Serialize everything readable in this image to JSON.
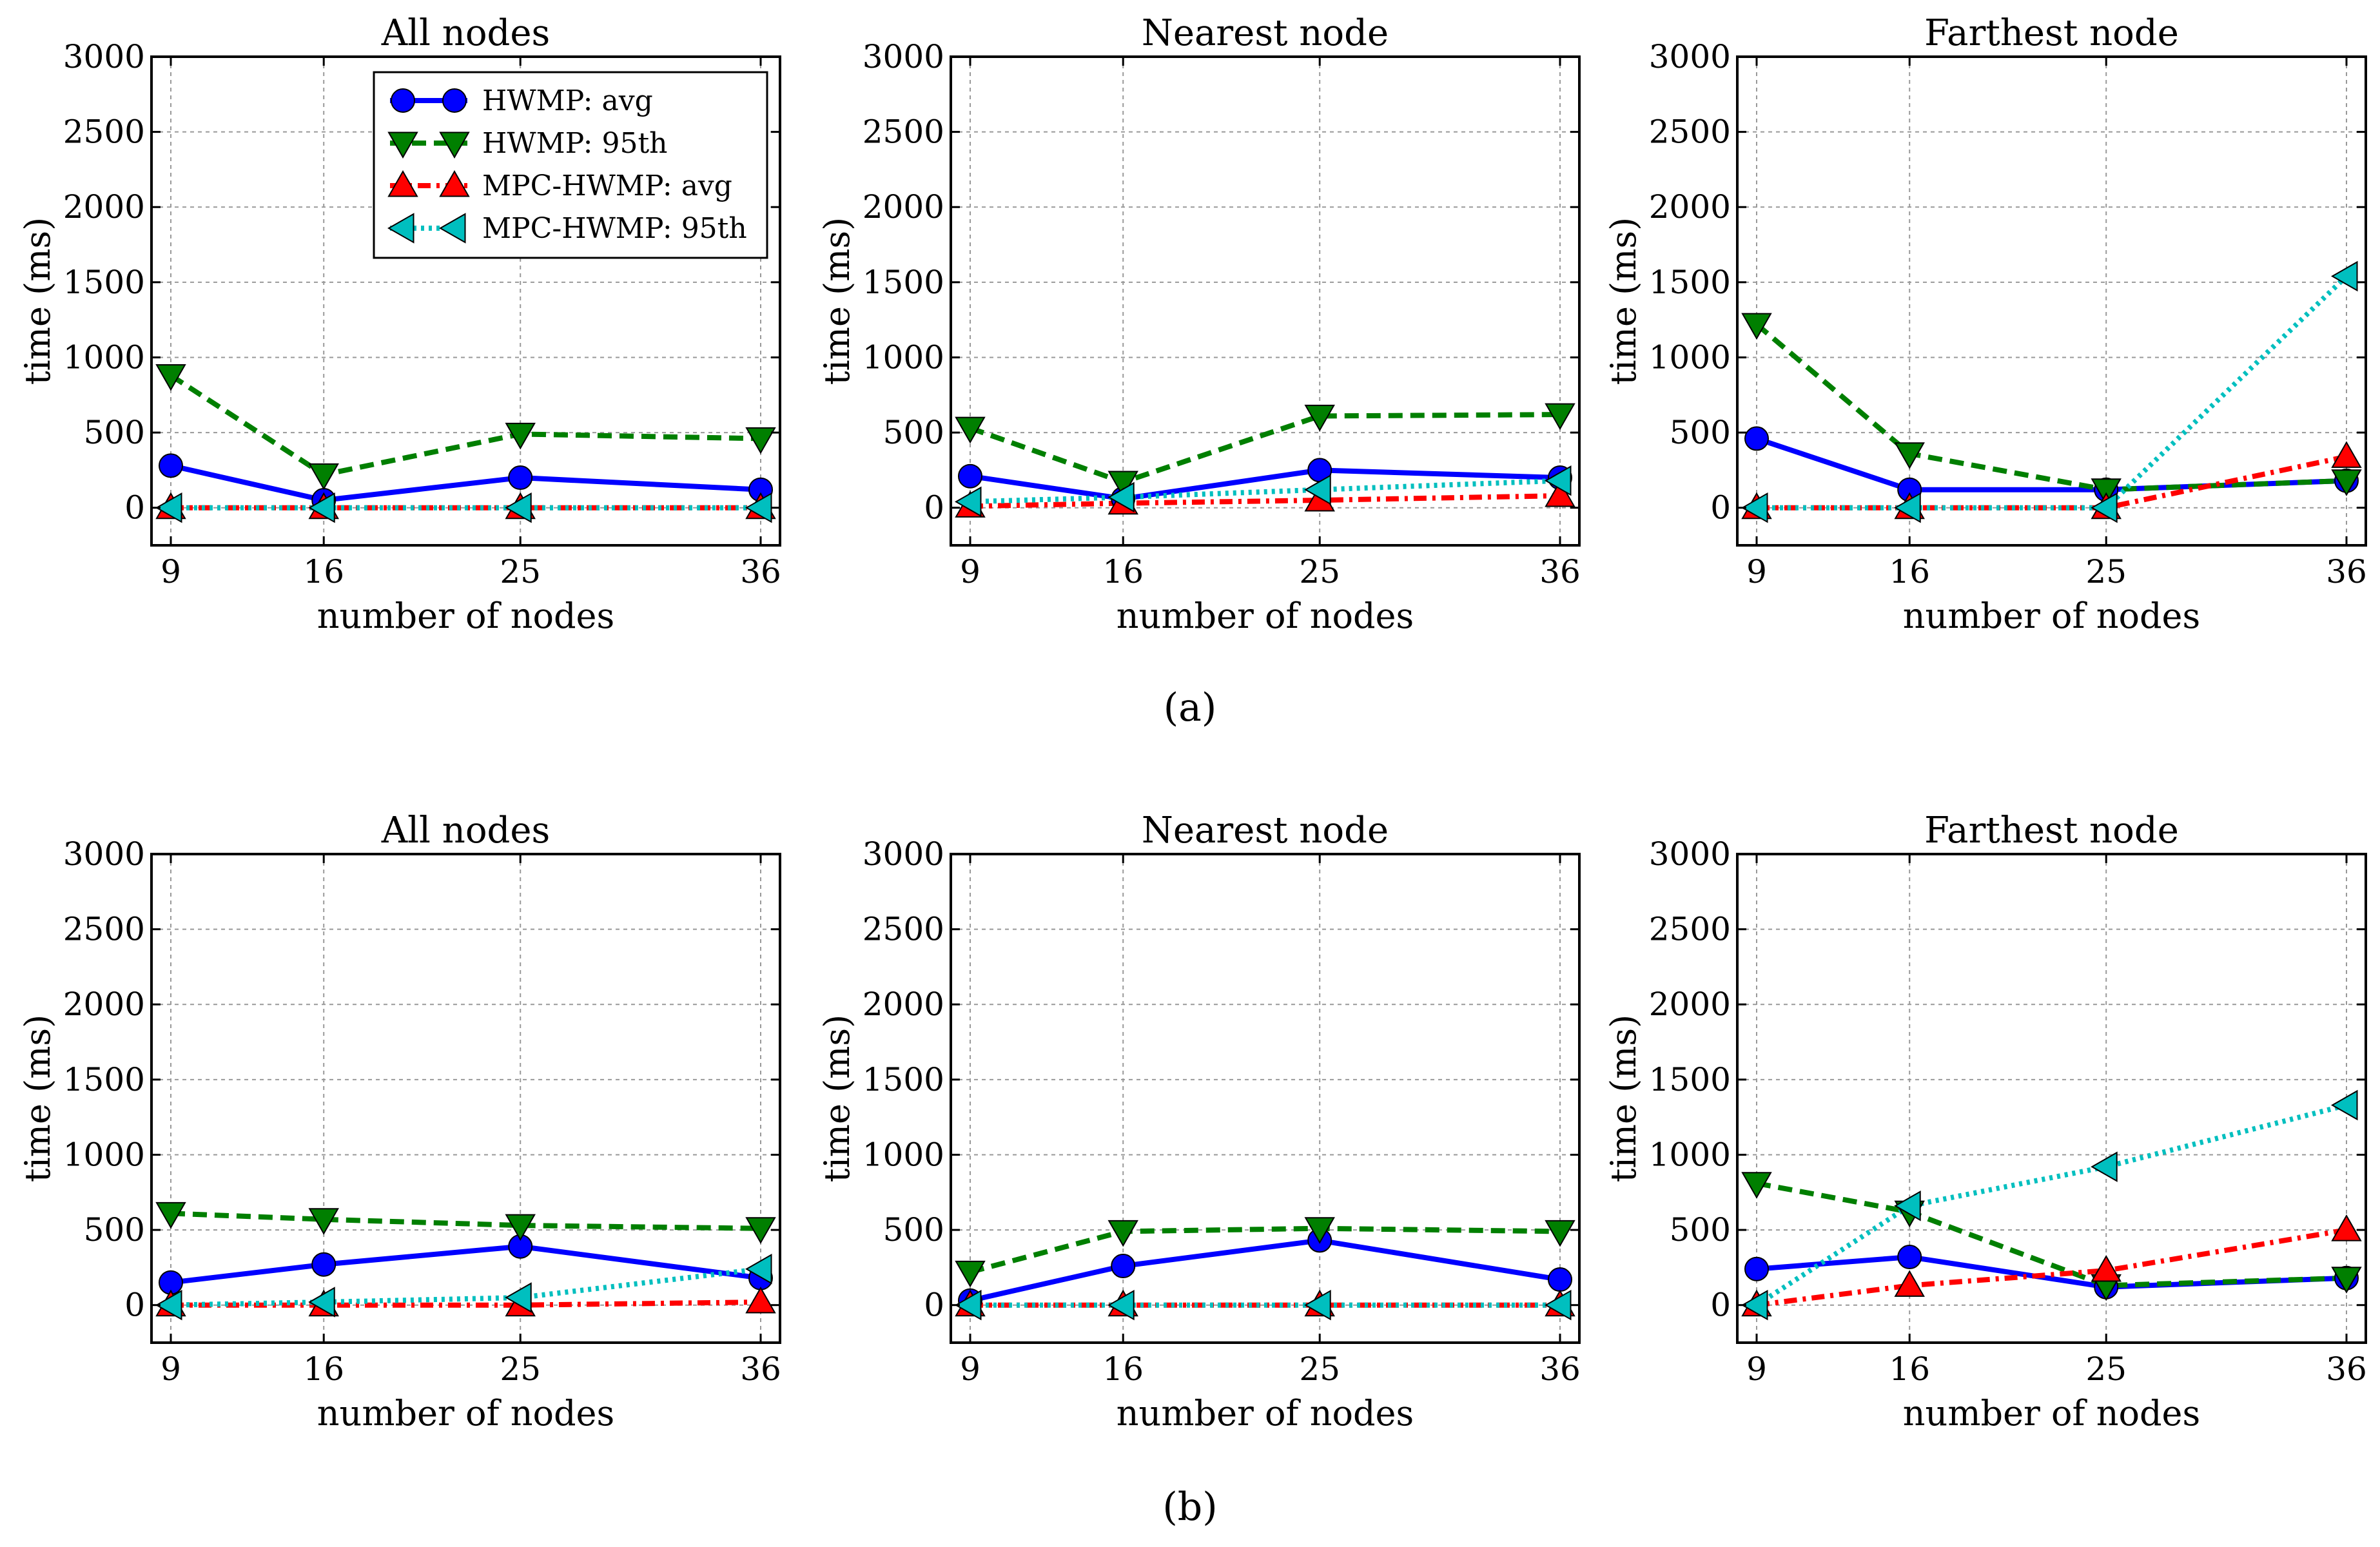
{
  "figure_labels": [
    "(a)",
    "(b)"
  ],
  "legend_entries": [
    "HWMP: avg",
    "HWMP: 95th",
    "MPC-HWMP: avg",
    "MPC-HWMP: 95th"
  ],
  "chart_data": [
    {
      "type": "line",
      "row": "a",
      "title": "All nodes",
      "xlabel": "number of nodes",
      "ylabel": "time (ms)",
      "x": [
        9,
        16,
        25,
        36
      ],
      "categories": [
        "9",
        "16",
        "25",
        "36"
      ],
      "ylim": [
        -250,
        3000
      ],
      "yticks": [
        0,
        500,
        1000,
        1500,
        2000,
        2500,
        3000
      ],
      "grid": true,
      "legend": "top-right",
      "series": [
        {
          "name": "HWMP: avg",
          "values": [
            280,
            50,
            200,
            120
          ],
          "color": "#0000ff",
          "marker": "circle",
          "dash": "solid"
        },
        {
          "name": "HWMP: 95th",
          "values": [
            880,
            220,
            490,
            460
          ],
          "color": "#007f00",
          "marker": "triangle-down",
          "dash": "dashed"
        },
        {
          "name": "MPC-HWMP: avg",
          "values": [
            0,
            0,
            0,
            0
          ],
          "color": "#ff0000",
          "marker": "triangle-up",
          "dash": "dashdot"
        },
        {
          "name": "MPC-HWMP: 95th",
          "values": [
            0,
            0,
            0,
            0
          ],
          "color": "#00bfbf",
          "marker": "triangle-left",
          "dash": "dotted"
        }
      ]
    },
    {
      "type": "line",
      "row": "a",
      "title": "Nearest node",
      "xlabel": "number of nodes",
      "ylabel": "time (ms)",
      "x": [
        9,
        16,
        25,
        36
      ],
      "categories": [
        "9",
        "16",
        "25",
        "36"
      ],
      "ylim": [
        -250,
        3000
      ],
      "yticks": [
        0,
        500,
        1000,
        1500,
        2000,
        2500,
        3000
      ],
      "grid": true,
      "series": [
        {
          "name": "HWMP: avg",
          "values": [
            210,
            60,
            250,
            200
          ],
          "color": "#0000ff",
          "marker": "circle",
          "dash": "solid"
        },
        {
          "name": "HWMP: 95th",
          "values": [
            530,
            170,
            610,
            620
          ],
          "color": "#007f00",
          "marker": "triangle-down",
          "dash": "dashed"
        },
        {
          "name": "MPC-HWMP: avg",
          "values": [
            10,
            30,
            50,
            80
          ],
          "color": "#ff0000",
          "marker": "triangle-up",
          "dash": "dashdot"
        },
        {
          "name": "MPC-HWMP: 95th",
          "values": [
            40,
            70,
            120,
            180
          ],
          "color": "#00bfbf",
          "marker": "triangle-left",
          "dash": "dotted"
        }
      ]
    },
    {
      "type": "line",
      "row": "a",
      "title": "Farthest node",
      "xlabel": "number of nodes",
      "ylabel": "time (ms)",
      "x": [
        9,
        16,
        25,
        36
      ],
      "categories": [
        "9",
        "16",
        "25",
        "36"
      ],
      "ylim": [
        -250,
        3000
      ],
      "yticks": [
        0,
        500,
        1000,
        1500,
        2000,
        2500,
        3000
      ],
      "grid": true,
      "series": [
        {
          "name": "HWMP: avg",
          "values": [
            460,
            120,
            120,
            180
          ],
          "color": "#0000ff",
          "marker": "circle",
          "dash": "solid"
        },
        {
          "name": "HWMP: 95th",
          "values": [
            1220,
            360,
            120,
            180
          ],
          "color": "#007f00",
          "marker": "triangle-down",
          "dash": "dashed"
        },
        {
          "name": "MPC-HWMP: avg",
          "values": [
            0,
            0,
            0,
            340
          ],
          "color": "#ff0000",
          "marker": "triangle-up",
          "dash": "dashdot"
        },
        {
          "name": "MPC-HWMP: 95th",
          "values": [
            0,
            0,
            0,
            1540
          ],
          "color": "#00bfbf",
          "marker": "triangle-left",
          "dash": "dotted"
        }
      ]
    },
    {
      "type": "line",
      "row": "b",
      "title": "All nodes",
      "xlabel": "number of nodes",
      "ylabel": "time (ms)",
      "x": [
        9,
        16,
        25,
        36
      ],
      "categories": [
        "9",
        "16",
        "25",
        "36"
      ],
      "ylim": [
        -250,
        3000
      ],
      "yticks": [
        0,
        500,
        1000,
        1500,
        2000,
        2500,
        3000
      ],
      "grid": true,
      "series": [
        {
          "name": "HWMP: avg",
          "values": [
            150,
            270,
            390,
            180
          ],
          "color": "#0000ff",
          "marker": "circle",
          "dash": "solid"
        },
        {
          "name": "HWMP: 95th",
          "values": [
            610,
            570,
            530,
            510
          ],
          "color": "#007f00",
          "marker": "triangle-down",
          "dash": "dashed"
        },
        {
          "name": "MPC-HWMP: avg",
          "values": [
            0,
            0,
            0,
            20
          ],
          "color": "#ff0000",
          "marker": "triangle-up",
          "dash": "dashdot"
        },
        {
          "name": "MPC-HWMP: 95th",
          "values": [
            0,
            20,
            50,
            240
          ],
          "color": "#00bfbf",
          "marker": "triangle-left",
          "dash": "dotted"
        }
      ]
    },
    {
      "type": "line",
      "row": "b",
      "title": "Nearest node",
      "xlabel": "number of nodes",
      "ylabel": "time (ms)",
      "x": [
        9,
        16,
        25,
        36
      ],
      "categories": [
        "9",
        "16",
        "25",
        "36"
      ],
      "ylim": [
        -250,
        3000
      ],
      "yticks": [
        0,
        500,
        1000,
        1500,
        2000,
        2500,
        3000
      ],
      "grid": true,
      "series": [
        {
          "name": "HWMP: avg",
          "values": [
            30,
            260,
            430,
            170
          ],
          "color": "#0000ff",
          "marker": "circle",
          "dash": "solid"
        },
        {
          "name": "HWMP: 95th",
          "values": [
            220,
            490,
            510,
            490
          ],
          "color": "#007f00",
          "marker": "triangle-down",
          "dash": "dashed"
        },
        {
          "name": "MPC-HWMP: avg",
          "values": [
            0,
            0,
            0,
            0
          ],
          "color": "#ff0000",
          "marker": "triangle-up",
          "dash": "dashdot"
        },
        {
          "name": "MPC-HWMP: 95th",
          "values": [
            0,
            0,
            0,
            0
          ],
          "color": "#00bfbf",
          "marker": "triangle-left",
          "dash": "dotted"
        }
      ]
    },
    {
      "type": "line",
      "row": "b",
      "title": "Farthest node",
      "xlabel": "number of nodes",
      "ylabel": "time (ms)",
      "x": [
        9,
        16,
        25,
        36
      ],
      "categories": [
        "9",
        "16",
        "25",
        "36"
      ],
      "ylim": [
        -250,
        3000
      ],
      "yticks": [
        0,
        500,
        1000,
        1500,
        2000,
        2500,
        3000
      ],
      "grid": true,
      "series": [
        {
          "name": "HWMP: avg",
          "values": [
            240,
            320,
            120,
            180
          ],
          "color": "#0000ff",
          "marker": "circle",
          "dash": "solid"
        },
        {
          "name": "HWMP: 95th",
          "values": [
            810,
            620,
            130,
            180
          ],
          "color": "#007f00",
          "marker": "triangle-down",
          "dash": "dashed"
        },
        {
          "name": "MPC-HWMP: avg",
          "values": [
            0,
            130,
            230,
            500
          ],
          "color": "#ff0000",
          "marker": "triangle-up",
          "dash": "dashdot"
        },
        {
          "name": "MPC-HWMP: 95th",
          "values": [
            0,
            660,
            920,
            1330
          ],
          "color": "#00bfbf",
          "marker": "triangle-left",
          "dash": "dotted"
        }
      ]
    }
  ]
}
